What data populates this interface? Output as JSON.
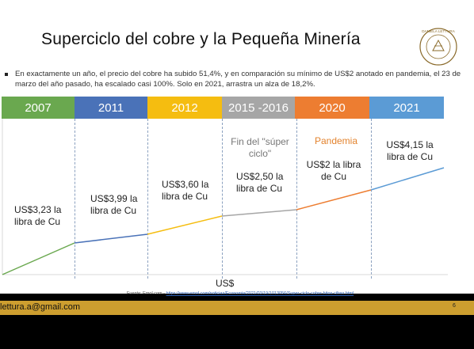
{
  "slide": {
    "title": "Superciclo del cobre y la Pequeña  Minería",
    "seal_text": "DANIELA LETTURA",
    "bullet": "En exactamente un año, el precio del cobre ha subido 51,4%, y en comparación su mínimo de US$2 anotado en pandemia, el 23 de marzo del año pasado, ha escalado casi 100%. Solo en 2021, arrastra un alza de 18,2%.",
    "years": [
      {
        "label": "2007",
        "color": "#6aa84f"
      },
      {
        "label": "2011",
        "color": "#4a72b8"
      },
      {
        "label": "2012",
        "color": "#f5bd10"
      },
      {
        "label": "2015 -2016",
        "color": "#a6a6a6"
      },
      {
        "label": "2020",
        "color": "#ed7d31"
      },
      {
        "label": "2021",
        "color": "#5b9bd5"
      }
    ],
    "price_labels": [
      "US$3,23 la libra de Cu",
      "US$3,99 la libra de Cu",
      "US$3,60 la libra de Cu",
      "US$2,50 la libra de Cu",
      "US$2 la libra de Cu",
      "US$4,15 la libra de Cu"
    ],
    "annotation_gray": "Fin del \"súper ciclo\"",
    "annotation_orange": "Pandemia",
    "axis_label": "US$",
    "footnote_prefix": "Fuente: Emol.com - ",
    "footnote_link": "https://www.emol.com/noticias/Economia/2021/03/19/1013056/Super-ciclo-cobre-hitos-cifras.html",
    "page_number": "6"
  },
  "footer": {
    "email": "lettura.a@gmail.com"
  }
}
